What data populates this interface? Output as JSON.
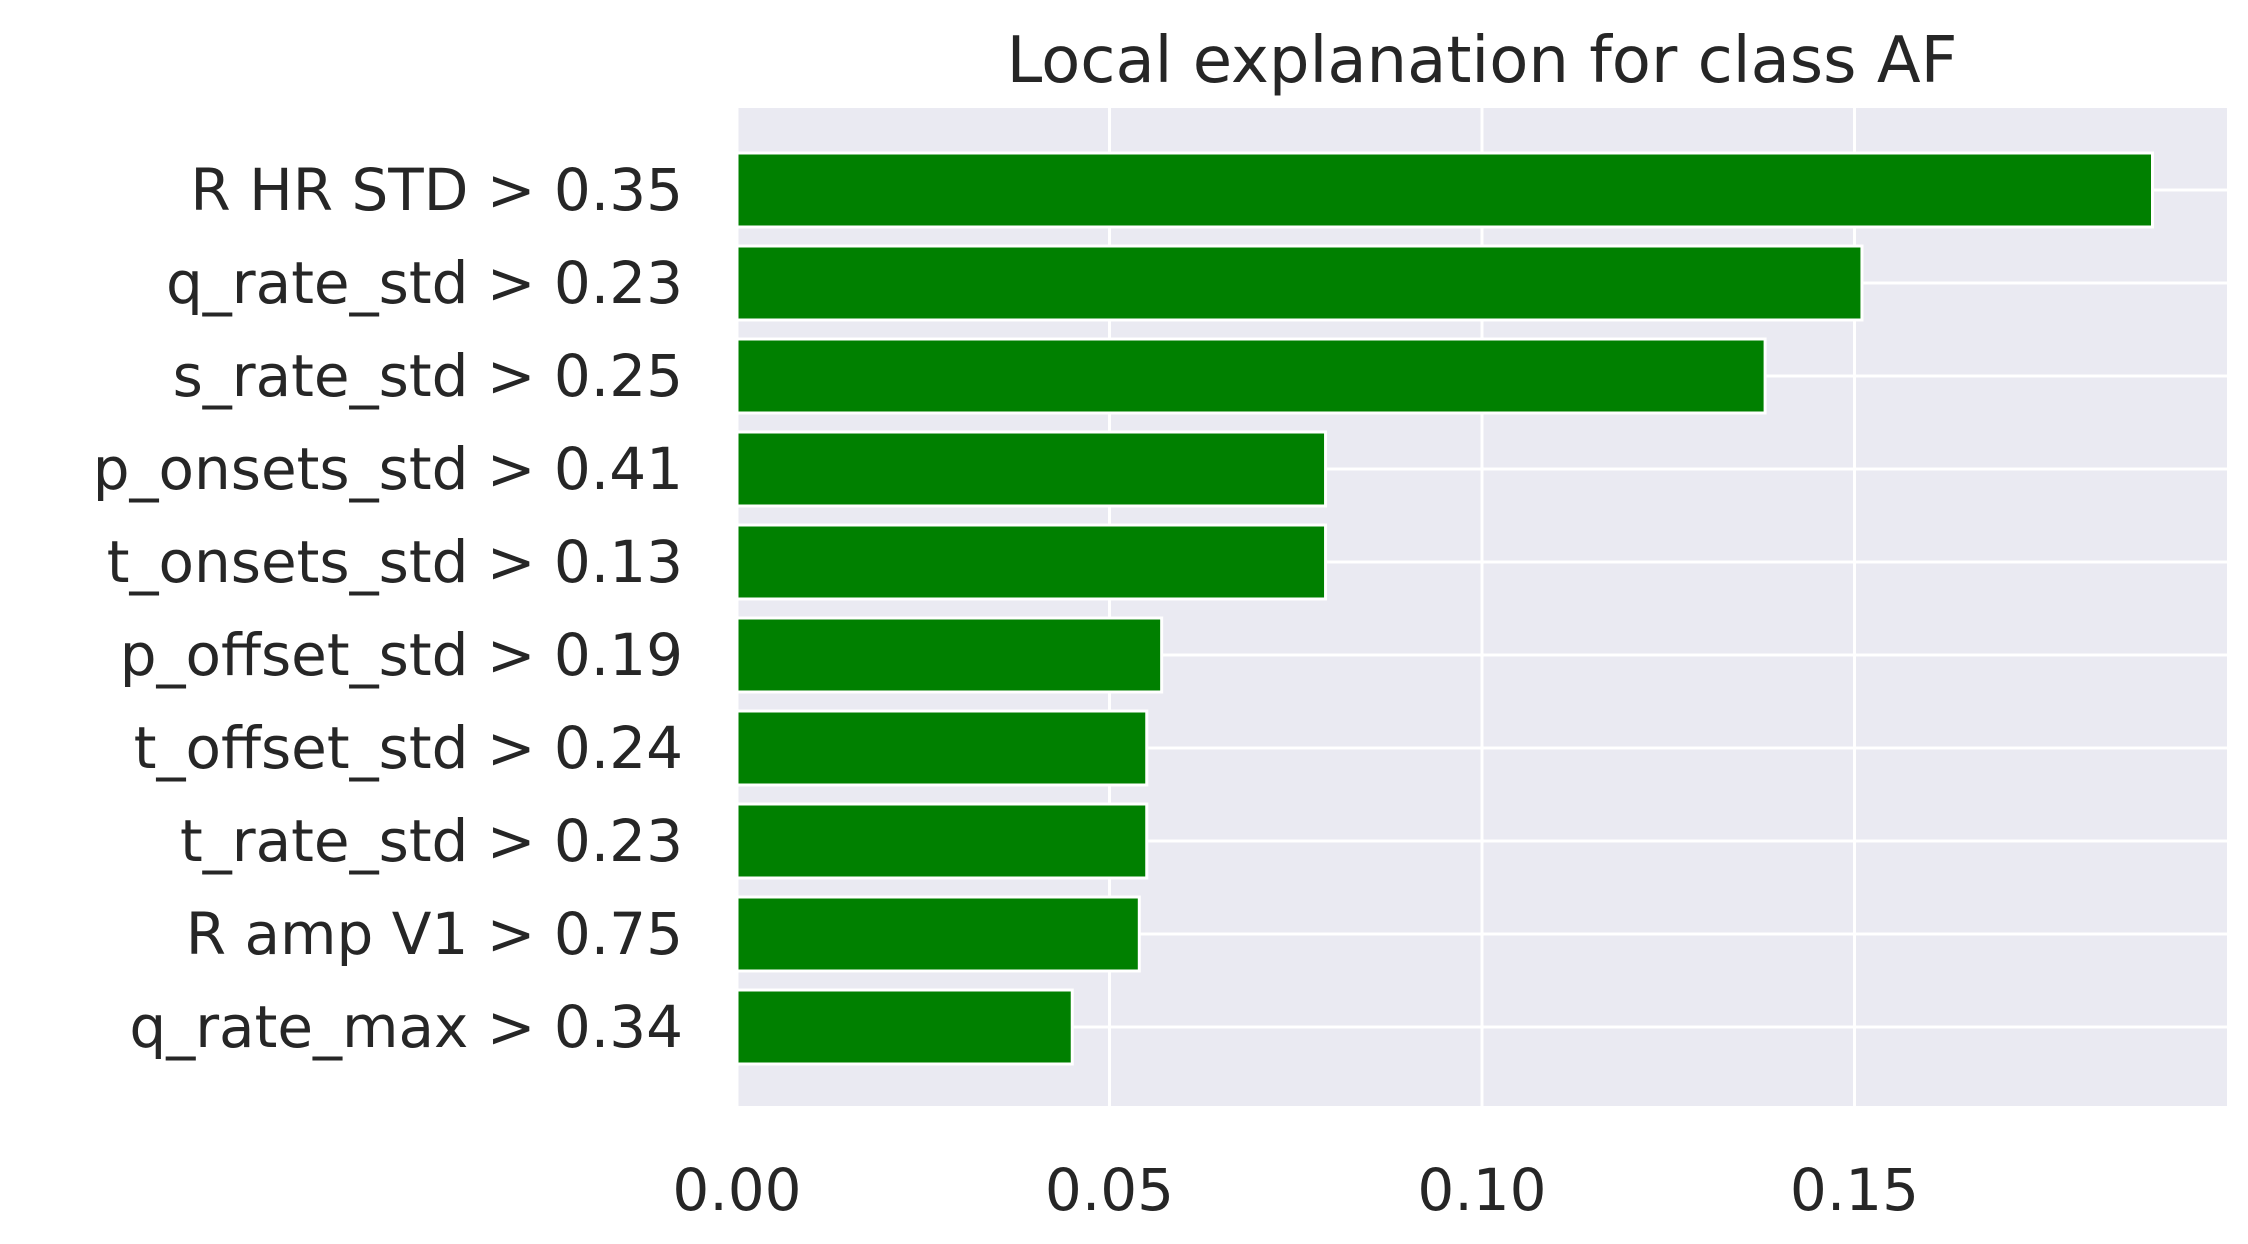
{
  "chart_data": {
    "type": "bar",
    "orientation": "horizontal",
    "title": "Local explanation for class AF",
    "xlabel": "",
    "ylabel": "",
    "categories": [
      "R HR STD > 0.35",
      "q_rate_std > 0.23",
      "s_rate_std > 0.25",
      "p_onsets_std > 0.41",
      "t_onsets_std > 0.13",
      "p_offset_std > 0.19",
      "t_offset_std > 0.24",
      "t_rate_std > 0.23",
      "R amp V1 > 0.75",
      "q_rate_max > 0.34"
    ],
    "values": [
      0.19,
      0.151,
      0.138,
      0.079,
      0.079,
      0.057,
      0.055,
      0.055,
      0.054,
      0.045
    ],
    "xlim": [
      0,
      0.2
    ],
    "xticks": [
      0.0,
      0.05,
      0.1,
      0.15
    ],
    "xtick_labels": [
      "0.00",
      "0.05",
      "0.10",
      "0.15"
    ],
    "grid": true,
    "colors": {
      "bar": "#008000",
      "bar_edge": "#ffffff",
      "plot_background": "#eaeaf2",
      "grid": "#ffffff",
      "text": "#262626"
    }
  }
}
